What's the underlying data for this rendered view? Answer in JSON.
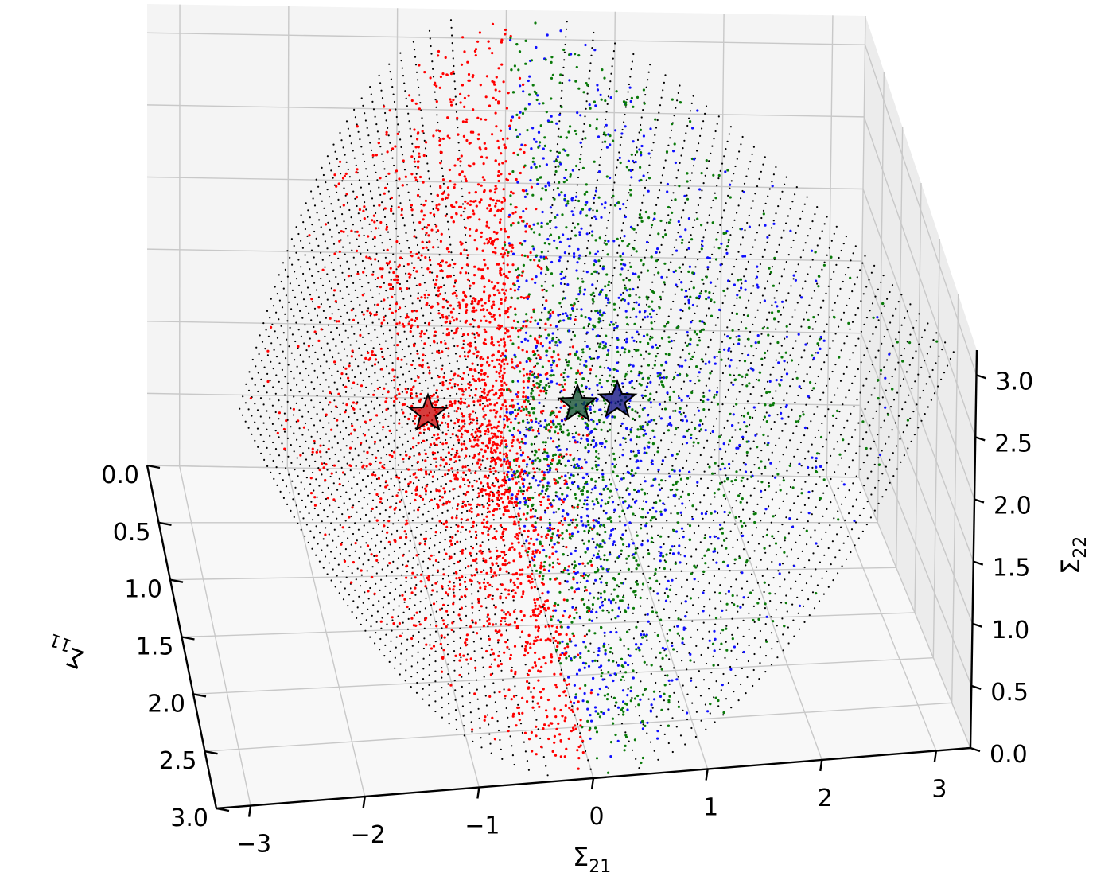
{
  "chart_data": {
    "type": "scatter",
    "projection": "3d",
    "axes": {
      "x": {
        "label": "Σ",
        "label_sub": "21",
        "range": [
          -3.3,
          3.3
        ],
        "ticks": [
          -3,
          -2,
          -1,
          0,
          1,
          2,
          3
        ],
        "tick_labels": [
          "−3",
          "−2",
          "−1",
          "0",
          "1",
          "2",
          "3"
        ]
      },
      "y": {
        "label": "Σ",
        "label_sub": "11",
        "range": [
          0,
          3.0
        ],
        "ticks": [
          0,
          0.5,
          1,
          1.5,
          2,
          2.5,
          3
        ],
        "tick_labels": [
          "0.0",
          "0.5",
          "1.0",
          "1.5",
          "2.0",
          "2.5",
          "3.0"
        ]
      },
      "z": {
        "label": "Σ",
        "label_sub": "22",
        "range": [
          0,
          3.2
        ],
        "ticks": [
          0,
          0.5,
          1,
          1.5,
          2,
          2.5,
          3
        ],
        "tick_labels": [
          "0.0",
          "0.5",
          "1.0",
          "1.5",
          "2.0",
          "2.5",
          "3.0"
        ]
      }
    },
    "grid": true,
    "cone_constraint": "Σ21² ≤ Σ11 · Σ22",
    "series": [
      {
        "color": "#ff0000",
        "region": "Σ21 < 0",
        "values": "uniform samples inside cone"
      },
      {
        "color": "#0a7a0a",
        "region": "Σ21 > 0, inner",
        "values": "uniform samples inside cone"
      },
      {
        "color": "#1010ff",
        "region": "Σ21 > 0, outer",
        "values": "uniform samples inside cone"
      },
      {
        "color": "#000000",
        "region": "cone boundary",
        "values": "boundary mesh"
      }
    ],
    "stars": [
      {
        "x": -1.1,
        "y": 1.5,
        "z": 1.5,
        "color": "#cc0000"
      },
      {
        "x": 0.55,
        "y": 1.5,
        "z": 1.6,
        "color": "#0a4a2a"
      },
      {
        "x": 0.95,
        "y": 1.5,
        "z": 1.5,
        "color": "#0a0a80"
      }
    ]
  }
}
